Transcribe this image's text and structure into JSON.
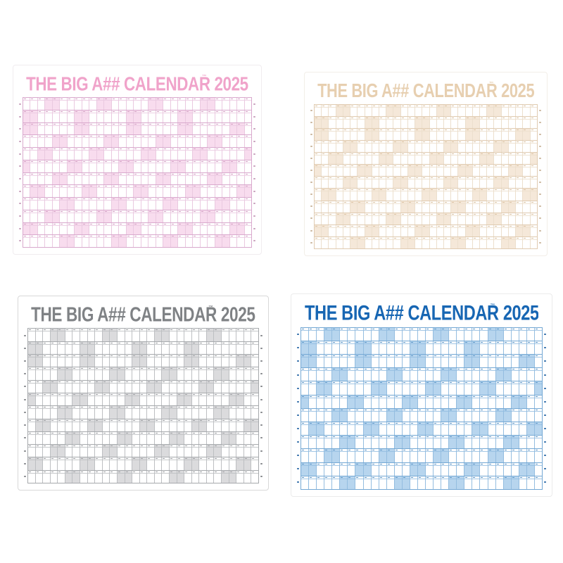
{
  "gallery": {
    "title_full": "THE BIG A## CALENDAR 2025",
    "trademark": "™",
    "year": "2025",
    "variants": [
      {
        "id": "pink",
        "colors": {
          "title": "#f0a3ca",
          "line": "#eac9e0",
          "strong": "#d9a9cd",
          "weekend": "#f8dcee",
          "dash": "#d5a3c6",
          "tick": "#c9a2bd",
          "border": "#f0ecef"
        }
      },
      {
        "id": "beige",
        "colors": {
          "title": "#e7cfb0",
          "line": "#ecdfcd",
          "strong": "#e0cbb1",
          "weekend": "#f5e8d9",
          "dash": "#dcc3a4",
          "tick": "#cbb79e",
          "border": "#f2eee8"
        }
      },
      {
        "id": "gray",
        "colors": {
          "title": "#7f8285",
          "line": "#bdbfc2",
          "strong": "#a6a9ac",
          "weekend": "#dbdbdd",
          "dash": "#9fa1a5",
          "tick": "#86888c",
          "border": "#d8d8d8"
        }
      },
      {
        "id": "blue",
        "colors": {
          "title": "#1766b3",
          "line": "#94bde0",
          "strong": "#74a8d4",
          "weekend": "#b7d5ee",
          "dash": "#5e97c8",
          "tick": "#2f6ca8",
          "border": "#ebebeb"
        }
      }
    ]
  },
  "calendar": {
    "columns": 31,
    "rows": 12,
    "year": "2025",
    "months": [
      {
        "weekend_columns": [
          4,
          5,
          11,
          12,
          18,
          19,
          25,
          26
        ]
      },
      {
        "weekend_columns": [
          1,
          2,
          8,
          9,
          15,
          16,
          22,
          23
        ]
      },
      {
        "weekend_columns": [
          1,
          2,
          8,
          9,
          15,
          16,
          22,
          23,
          29,
          30
        ]
      },
      {
        "weekend_columns": [
          5,
          6,
          12,
          13,
          19,
          20,
          26,
          27
        ]
      },
      {
        "weekend_columns": [
          3,
          4,
          10,
          11,
          17,
          18,
          24,
          25,
          31
        ]
      },
      {
        "weekend_columns": [
          1,
          7,
          8,
          14,
          15,
          21,
          22,
          28,
          29
        ]
      },
      {
        "weekend_columns": [
          5,
          6,
          12,
          13,
          19,
          20,
          26,
          27
        ]
      },
      {
        "weekend_columns": [
          2,
          3,
          9,
          10,
          16,
          17,
          23,
          24,
          30,
          31
        ]
      },
      {
        "weekend_columns": [
          6,
          7,
          13,
          14,
          20,
          21,
          27,
          28
        ]
      },
      {
        "weekend_columns": [
          4,
          5,
          11,
          12,
          18,
          19,
          25,
          26
        ]
      },
      {
        "weekend_columns": [
          1,
          2,
          8,
          9,
          15,
          16,
          22,
          23,
          29,
          30
        ]
      },
      {
        "weekend_columns": [
          6,
          7,
          13,
          14,
          20,
          21,
          27,
          28
        ]
      }
    ]
  }
}
